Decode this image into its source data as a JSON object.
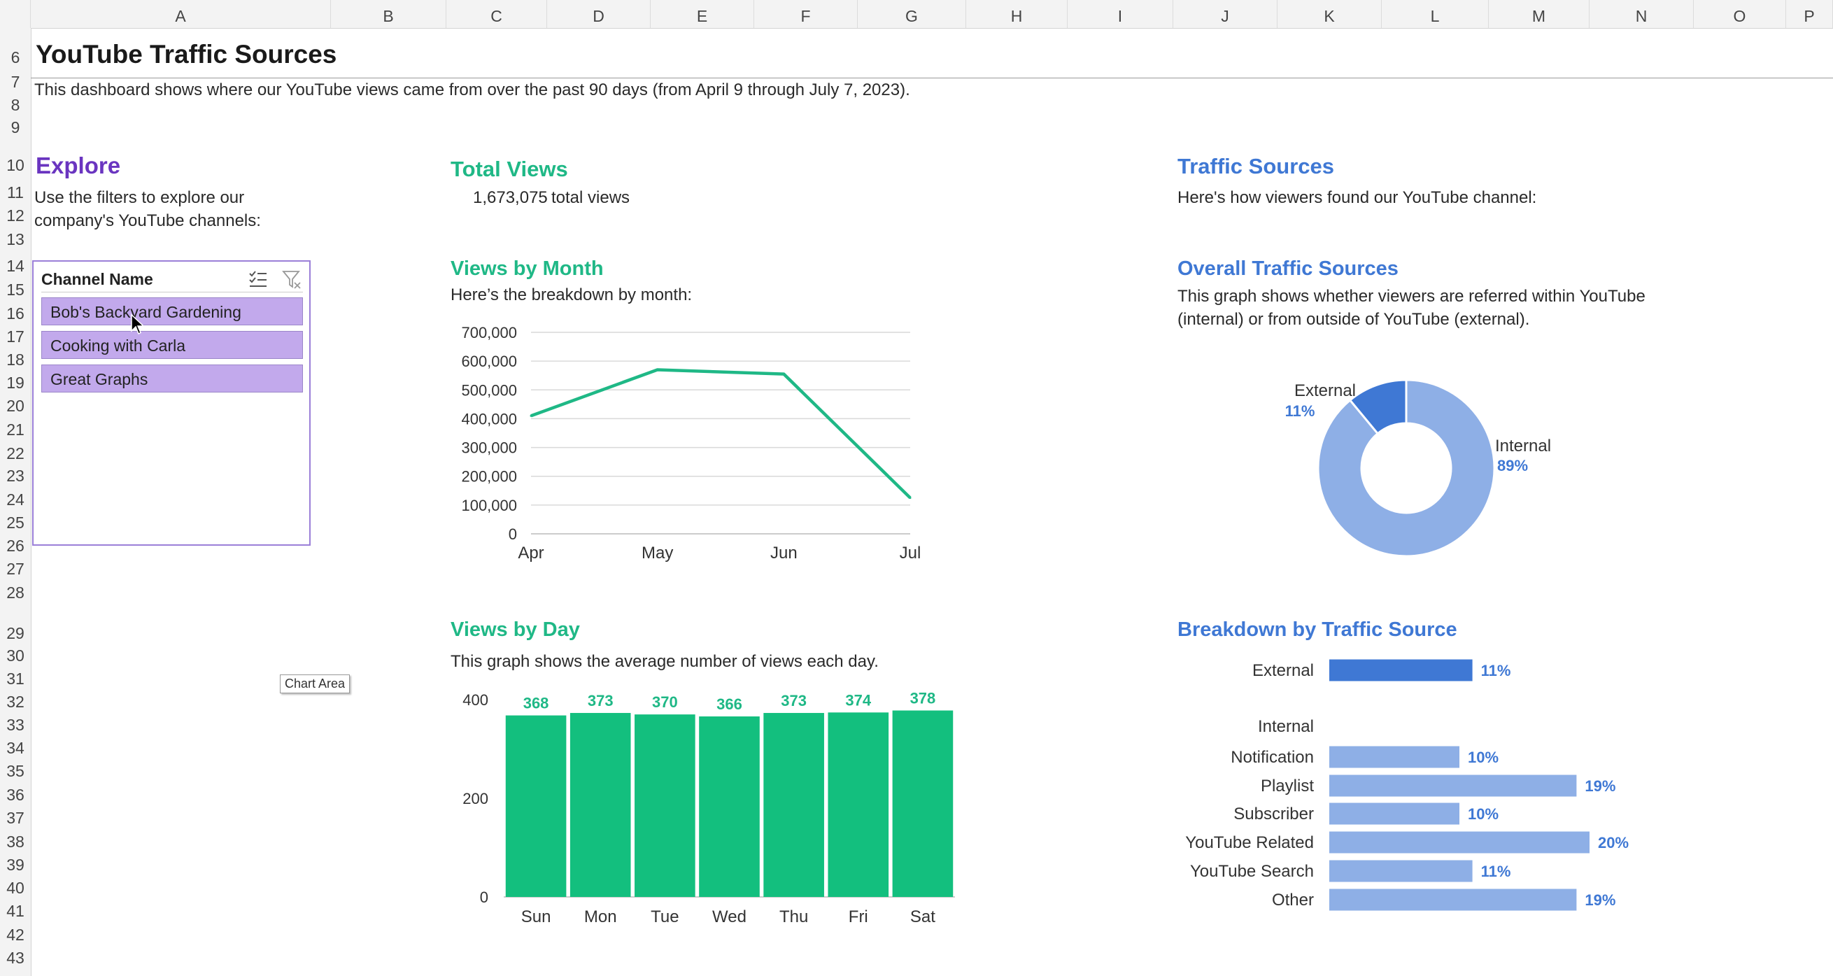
{
  "columns": [
    "A",
    "B",
    "C",
    "D",
    "E",
    "F",
    "G",
    "H",
    "I",
    "J",
    "K",
    "L",
    "M",
    "N",
    "O",
    "P"
  ],
  "rows": [
    "6",
    "7",
    "8",
    "9",
    "10",
    "11",
    "12",
    "13",
    "14",
    "15",
    "16",
    "17",
    "18",
    "19",
    "20",
    "21",
    "22",
    "23",
    "24",
    "25",
    "26",
    "27",
    "28",
    "29",
    "30",
    "31",
    "32",
    "33",
    "34",
    "35",
    "36",
    "37",
    "38",
    "39",
    "40",
    "41",
    "42",
    "43"
  ],
  "header": {
    "title": "YouTube Traffic Sources",
    "description": "This dashboard shows where our YouTube views came from over the past 90 days (from April 9 through July 7, 2023)."
  },
  "explore": {
    "heading": "Explore",
    "line1": "Use the filters to explore our",
    "line2": "company's YouTube channels:"
  },
  "slicer": {
    "title": "Channel Name",
    "items": [
      "Bob's Backyard Gardening",
      "Cooking with Carla",
      "Great Graphs"
    ]
  },
  "total_views": {
    "heading": "Total Views",
    "value": "1,673,075",
    "suffix": "total views"
  },
  "tooltip": "Chart Area",
  "traffic": {
    "heading": "Traffic Sources",
    "subtitle": "Here's how viewers found our YouTube channel:"
  },
  "overall": {
    "heading": "Overall Traffic Sources",
    "line1": "This graph shows whether viewers are referred within YouTube",
    "line2": "(internal) or from outside of YouTube (external)."
  },
  "month": {
    "heading": "Views by Month",
    "subtitle": "Here’s the breakdown by month:"
  },
  "day": {
    "heading": "Views by Day",
    "subtitle": "This graph shows the average number of views each day."
  },
  "breakdown": {
    "heading": "Breakdown by Traffic Source",
    "internal_group_label": "Internal"
  },
  "colors": {
    "green": "#1fb886",
    "bar_green": "#13bf7e",
    "purple": "#6a35c0",
    "blue": "#3f78d4",
    "light_blue": "#8eafe6",
    "slicer_item": "#c2a9ec"
  },
  "chart_data": [
    {
      "type": "line",
      "categories": [
        "Apr",
        "May",
        "Jun",
        "Jul"
      ],
      "values": [
        410000,
        570000,
        555000,
        125000
      ],
      "ylim": [
        0,
        700000
      ],
      "yticks": [
        "0",
        "100,000",
        "200,000",
        "300,000",
        "400,000",
        "500,000",
        "600,000",
        "700,000"
      ],
      "grid": true
    },
    {
      "type": "bar",
      "categories": [
        "Sun",
        "Mon",
        "Tue",
        "Wed",
        "Thu",
        "Fri",
        "Sat"
      ],
      "values": [
        368,
        373,
        370,
        366,
        373,
        374,
        378
      ],
      "ylim": [
        0,
        400
      ],
      "yticks": [
        "0",
        "200",
        "400"
      ]
    },
    {
      "type": "pie",
      "categories": [
        "Internal",
        "External"
      ],
      "values": [
        89,
        11
      ],
      "labels": [
        "89%",
        "11%"
      ]
    },
    {
      "type": "bar",
      "orientation": "horizontal",
      "categories": [
        "External",
        "Notification",
        "Playlist",
        "Subscriber",
        "YouTube Related",
        "YouTube Search",
        "Other"
      ],
      "values": [
        11,
        10,
        19,
        10,
        20,
        11,
        19
      ],
      "labels": [
        "11%",
        "10%",
        "19%",
        "10%",
        "20%",
        "11%",
        "19%"
      ]
    }
  ]
}
